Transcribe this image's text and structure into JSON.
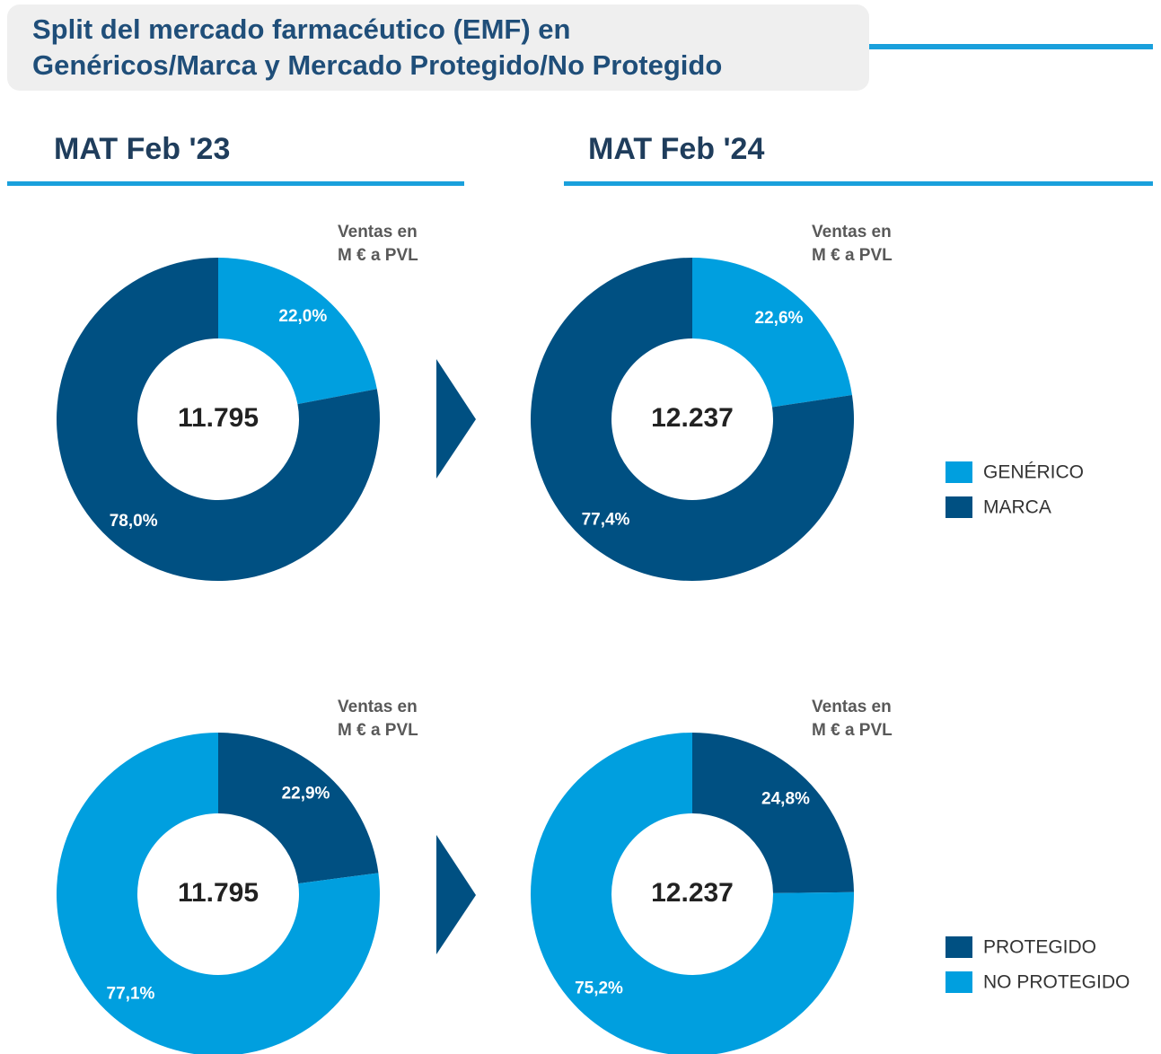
{
  "title": [
    "Split del mercado farmacéutico (EMF) en",
    "Genéricos/Marca y Mercado Protegido/No Protegido"
  ],
  "columns": [
    "MAT Feb '23",
    "MAT Feb '24"
  ],
  "chart_data": [
    {
      "type": "pie",
      "donut": true,
      "note": [
        "Ventas en",
        "M € a PVL"
      ],
      "total": {
        "value": 11795,
        "label": "11.795"
      },
      "categories": [
        "GENÉRICO",
        "MARCA"
      ],
      "colors": [
        "#009fdf",
        "#005082"
      ],
      "values": [
        22.0,
        78.0
      ],
      "value_labels": [
        "22,0%",
        "78,0%"
      ],
      "legend": false
    },
    {
      "type": "pie",
      "donut": true,
      "note": [
        "Ventas en",
        "M € a PVL"
      ],
      "total": {
        "value": 12237,
        "label": "12.237"
      },
      "categories": [
        "GENÉRICO",
        "MARCA"
      ],
      "colors": [
        "#009fdf",
        "#005082"
      ],
      "values": [
        22.6,
        77.4
      ],
      "value_labels": [
        "22,6%",
        "77,4%"
      ],
      "legend": true
    },
    {
      "type": "pie",
      "donut": true,
      "note": [
        "Ventas en",
        "M € a PVL"
      ],
      "total": {
        "value": 11795,
        "label": "11.795"
      },
      "categories": [
        "PROTEGIDO",
        "NO PROTEGIDO"
      ],
      "colors": [
        "#005082",
        "#009fdf"
      ],
      "values": [
        22.9,
        77.1
      ],
      "value_labels": [
        "22,9%",
        "77,1%"
      ],
      "legend": false
    },
    {
      "type": "pie",
      "donut": true,
      "note": [
        "Ventas en",
        "M € a PVL"
      ],
      "total": {
        "value": 12237,
        "label": "12.237"
      },
      "categories": [
        "PROTEGIDO",
        "NO PROTEGIDO"
      ],
      "colors": [
        "#005082",
        "#009fdf"
      ],
      "values": [
        24.8,
        75.2
      ],
      "value_labels": [
        "24,8%",
        "75,2%"
      ],
      "legend": true
    }
  ]
}
